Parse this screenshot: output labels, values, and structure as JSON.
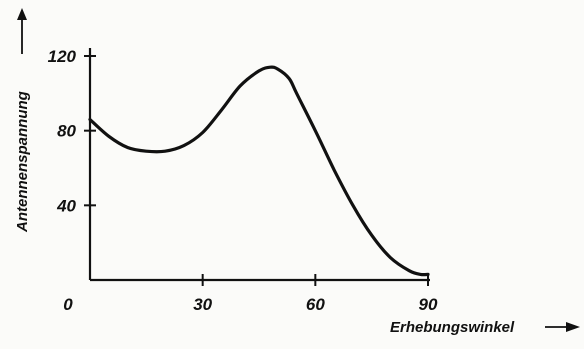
{
  "chart_data": {
    "type": "line",
    "title": "",
    "xlabel": "Erhebungswinkel",
    "ylabel": "Antennenspannung",
    "xlim": [
      0,
      90
    ],
    "ylim": [
      0,
      120
    ],
    "x_ticks": [
      "0",
      "30",
      "60",
      "90"
    ],
    "y_ticks": [
      "40",
      "80",
      "120"
    ],
    "x_tick_values": [
      0,
      30,
      60,
      90
    ],
    "y_tick_values": [
      40,
      80,
      120
    ],
    "grid": false,
    "legend": "none",
    "line_color": "#111111",
    "series": [
      {
        "x": [
          0,
          5,
          10,
          15,
          20,
          25,
          30,
          35,
          40,
          45,
          48,
          50,
          53,
          55,
          60,
          65,
          70,
          75,
          80,
          85,
          88,
          90
        ],
        "values": [
          86,
          77,
          71,
          69,
          69,
          72,
          79,
          91,
          104,
          112,
          114,
          113,
          108,
          100,
          80,
          59,
          40,
          24,
          12,
          5,
          3,
          3
        ]
      }
    ]
  }
}
